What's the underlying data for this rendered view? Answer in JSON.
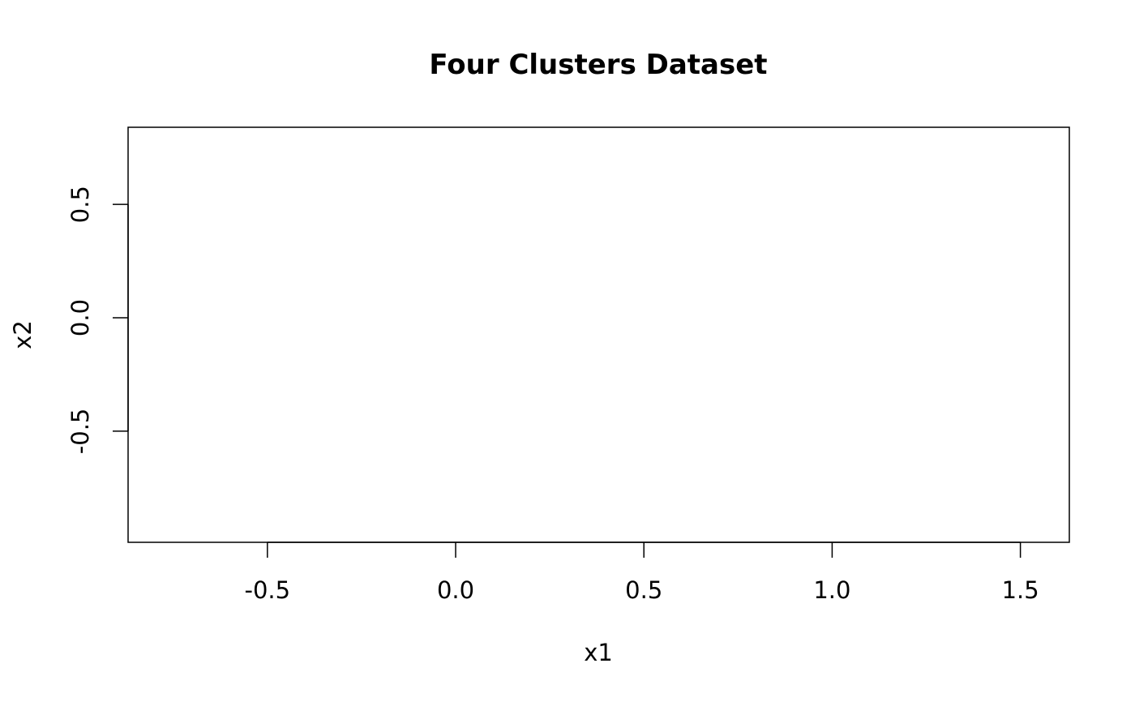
{
  "chart_data": {
    "type": "scatter",
    "title": "Four Clusters Dataset",
    "xlabel": "x1",
    "ylabel": "x2",
    "xlim": [
      -0.87,
      1.63
    ],
    "ylim": [
      -0.99,
      0.84
    ],
    "x_ticks": [
      {
        "value": -0.5,
        "label": "-0.5"
      },
      {
        "value": 0.0,
        "label": "0.0"
      },
      {
        "value": 0.5,
        "label": "0.5"
      },
      {
        "value": 1.0,
        "label": "1.0"
      },
      {
        "value": 1.5,
        "label": "1.5"
      }
    ],
    "y_ticks": [
      {
        "value": -0.5,
        "label": "-0.5"
      },
      {
        "value": 0.0,
        "label": "0.0"
      },
      {
        "value": 0.5,
        "label": "0.5"
      }
    ],
    "series": [],
    "grid": false,
    "legend": "none"
  }
}
